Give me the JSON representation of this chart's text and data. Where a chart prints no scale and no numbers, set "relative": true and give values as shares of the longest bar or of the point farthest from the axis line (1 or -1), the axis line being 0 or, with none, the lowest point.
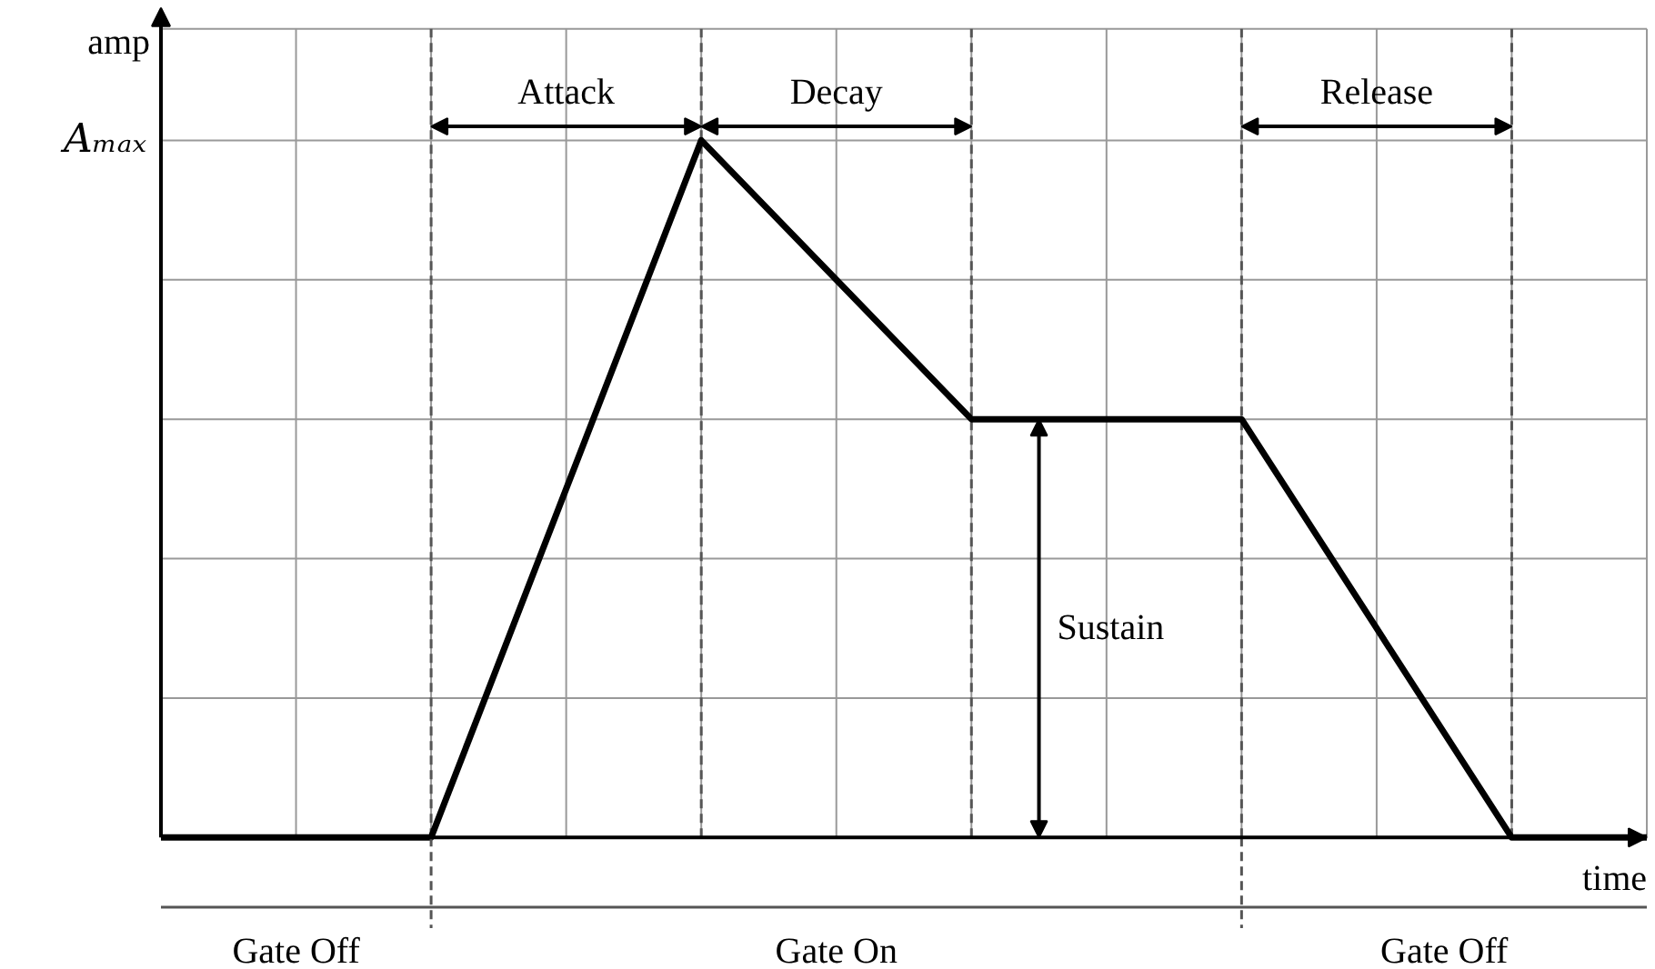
{
  "chart_data": {
    "type": "line",
    "relative": true,
    "xlabel": "time",
    "ylabel": "amp",
    "grid": true,
    "marker": "none",
    "line_style": "solid",
    "categories": [
      null,
      null,
      null,
      null,
      null,
      null,
      null,
      null,
      null,
      null,
      null,
      null
    ],
    "series": [
      {
        "color": "#000000",
        "values": [
          0,
          0,
          0,
          0.5,
          1,
          0.8,
          0.6,
          0.6,
          0.6,
          0.3,
          0,
          0
        ]
      }
    ],
    "annotations": [
      "Aₘₐₓ",
      "Attack",
      "Decay",
      "Sustain",
      "Release",
      "Gate Off",
      "Gate On",
      "Gate Off"
    ]
  }
}
